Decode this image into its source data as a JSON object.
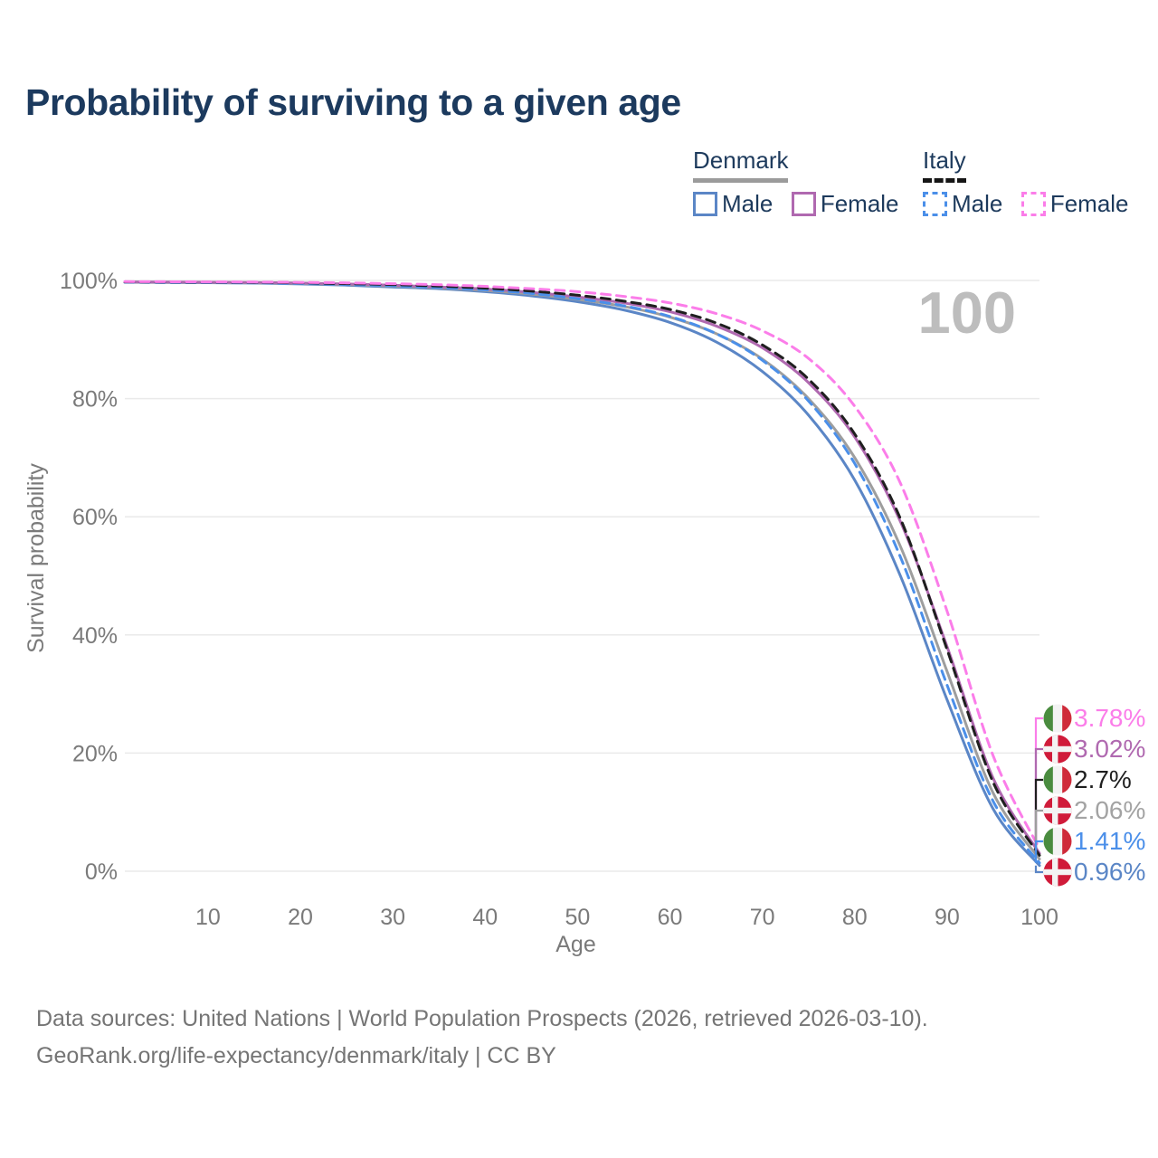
{
  "page": {
    "title": "Probability of surviving to a given age"
  },
  "legend": {
    "groups": [
      {
        "label": "Denmark",
        "underline_style": "solid",
        "underline_color": "#9b9b9b",
        "items": [
          {
            "label": "Male",
            "color": "#5b86c6",
            "dashed": false
          },
          {
            "label": "Female",
            "color": "#b069b0",
            "dashed": false
          }
        ]
      },
      {
        "label": "Italy",
        "underline_style": "dashed",
        "underline_color": "#161616",
        "items": [
          {
            "label": "Male",
            "color": "#4b8fe9",
            "dashed": true
          },
          {
            "label": "Female",
            "color": "#fb7de9",
            "dashed": true
          }
        ]
      }
    ]
  },
  "watermark": "100",
  "footer": {
    "line1": "Data sources: United Nations | World Population Prospects (2026, retrieved 2026-03-10).",
    "line2": "GeoRank.org/life-expectancy/denmark/italy | CC BY"
  },
  "colors": {
    "title_text": "#1c3a5e",
    "axis_text": "#7a7a7a",
    "gridline": "#eaeaea",
    "watermark": "#bdbdbd",
    "denmark_flag_red": "#d01b3a",
    "italy_flag_green": "#4a8c3f",
    "italy_flag_red": "#cf2b3a"
  },
  "chart_data": {
    "type": "line",
    "title": "Probability of surviving to a given age",
    "xlabel": "Age",
    "ylabel": "Survival probability",
    "xlim": [
      1,
      100
    ],
    "ylim": [
      0,
      100
    ],
    "grid": "horizontal-only",
    "x_ticks": [
      10,
      20,
      30,
      40,
      50,
      60,
      70,
      80,
      90,
      100
    ],
    "y_ticks": [
      {
        "value": 0,
        "label": "0%"
      },
      {
        "value": 20,
        "label": "20%"
      },
      {
        "value": 40,
        "label": "40%"
      },
      {
        "value": 60,
        "label": "60%"
      },
      {
        "value": 80,
        "label": "80%"
      },
      {
        "value": 100,
        "label": "100%"
      }
    ],
    "x": [
      1,
      5,
      10,
      15,
      20,
      25,
      30,
      35,
      40,
      45,
      50,
      55,
      60,
      65,
      70,
      75,
      80,
      85,
      90,
      95,
      100
    ],
    "series": [
      {
        "name": "Denmark Male",
        "country": "denmark",
        "sex": "male",
        "color": "#5b86c6",
        "dashed": false,
        "end_label": "0.96%",
        "end_value": 0.96,
        "values": [
          99.7,
          99.66,
          99.62,
          99.55,
          99.4,
          99.2,
          98.9,
          98.6,
          98.1,
          97.4,
          96.4,
          95.0,
          92.9,
          89.6,
          84.6,
          77.2,
          66.2,
          49.8,
          29.0,
          10.5,
          0.96
        ]
      },
      {
        "name": "Denmark Total",
        "country": "denmark",
        "sex": "total",
        "color": "#9e9e9e",
        "dashed": false,
        "end_label": "2.06%",
        "end_value": 2.06,
        "label_color": "#a3a3a3",
        "values": [
          99.72,
          99.69,
          99.66,
          99.6,
          99.5,
          99.3,
          99.05,
          98.75,
          98.3,
          97.7,
          96.8,
          95.6,
          93.8,
          91.0,
          86.7,
          80.0,
          70.0,
          54.8,
          33.8,
          13.2,
          2.06
        ]
      },
      {
        "name": "Denmark Female",
        "country": "denmark",
        "sex": "female",
        "color": "#b069b0",
        "dashed": false,
        "end_label": "3.02%",
        "end_value": 3.02,
        "values": [
          99.75,
          99.72,
          99.7,
          99.65,
          99.55,
          99.4,
          99.2,
          98.9,
          98.55,
          98.0,
          97.2,
          96.2,
          94.7,
          92.3,
          88.6,
          82.7,
          73.5,
          59.0,
          38.0,
          15.7,
          3.02
        ]
      },
      {
        "name": "Italy Male",
        "country": "italy",
        "sex": "male",
        "color": "#4b8fe9",
        "dashed": true,
        "end_label": "1.41%",
        "end_value": 1.41,
        "values": [
          99.7,
          99.67,
          99.64,
          99.58,
          99.5,
          99.3,
          99.1,
          98.8,
          98.4,
          97.8,
          96.9,
          95.7,
          93.9,
          91.0,
          86.5,
          79.6,
          69.0,
          53.0,
          31.5,
          11.8,
          1.41
        ]
      },
      {
        "name": "Italy Total",
        "country": "italy",
        "sex": "total",
        "color": "#1f1f1f",
        "dashed": true,
        "end_label": "2.7%",
        "end_value": 2.7,
        "values": [
          99.75,
          99.73,
          99.71,
          99.66,
          99.6,
          99.45,
          99.3,
          99.05,
          98.7,
          98.2,
          97.5,
          96.5,
          95.1,
          92.8,
          89.1,
          83.3,
          74.0,
          59.5,
          37.5,
          15.0,
          2.7
        ]
      },
      {
        "name": "Italy Female",
        "country": "italy",
        "sex": "female",
        "color": "#fb7de9",
        "dashed": true,
        "end_label": "3.78%",
        "end_value": 3.78,
        "values": [
          99.8,
          99.78,
          99.76,
          99.72,
          99.67,
          99.58,
          99.45,
          99.28,
          99.0,
          98.6,
          98.1,
          97.3,
          96.2,
          94.4,
          91.5,
          86.8,
          78.7,
          65.5,
          44.0,
          19.5,
          3.78
        ]
      }
    ],
    "legend_position": "top-right",
    "hover_age_indicator": "100"
  }
}
